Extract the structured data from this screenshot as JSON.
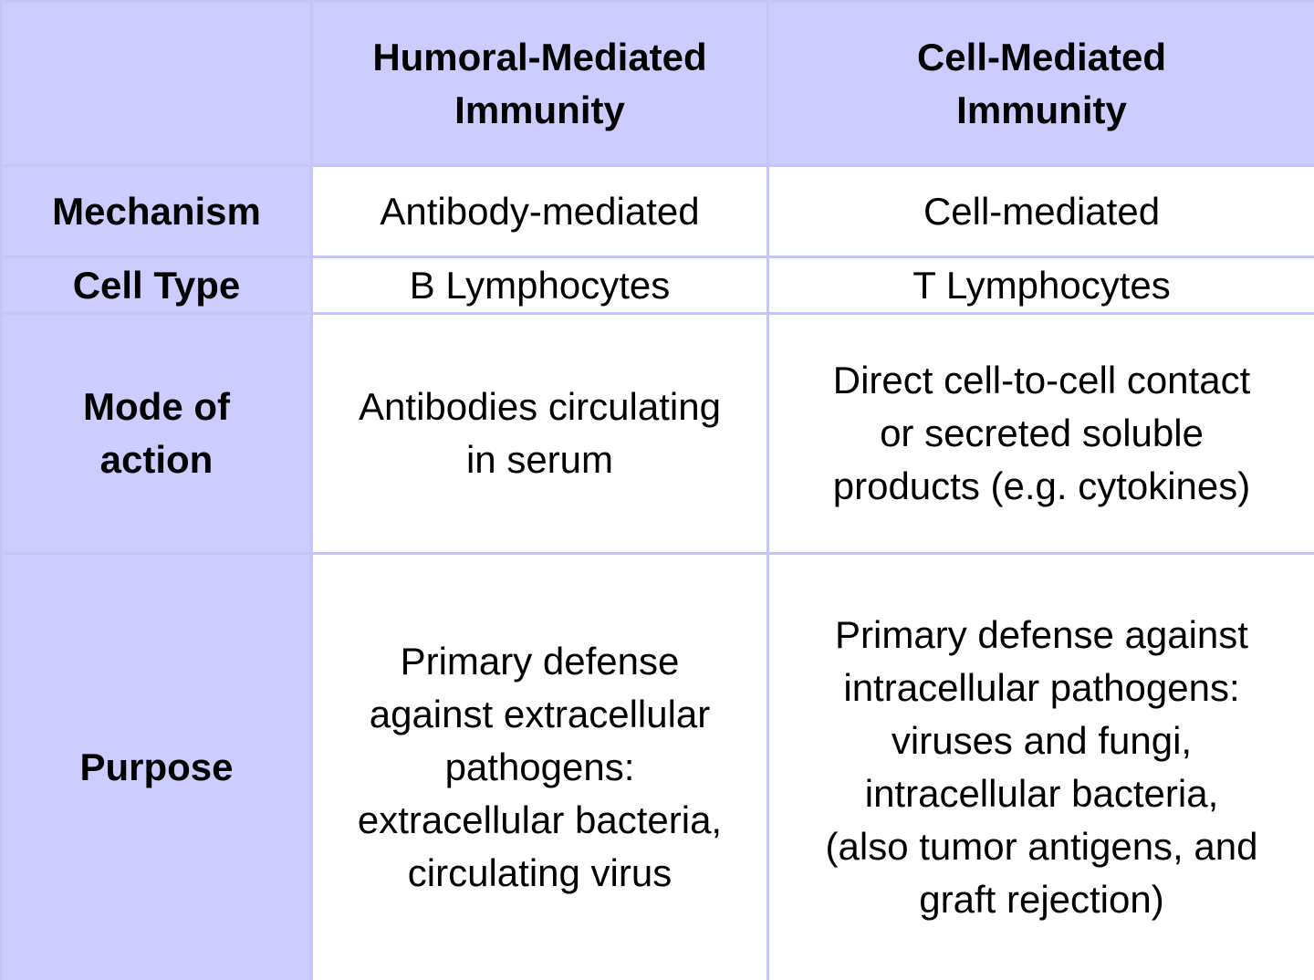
{
  "table": {
    "header": {
      "columns": [
        [
          "Humoral-Mediated",
          "Immunity"
        ],
        [
          "Cell-Mediated",
          "Immunity"
        ]
      ]
    },
    "rows": [
      {
        "label": [
          "Mechanism"
        ],
        "cells": [
          [
            "Antibody-mediated"
          ],
          [
            "Cell-mediated"
          ]
        ]
      },
      {
        "label": [
          "Cell Type"
        ],
        "cells": [
          [
            "B Lymphocytes"
          ],
          [
            "T Lymphocytes"
          ]
        ]
      },
      {
        "label": [
          "Mode of",
          "action"
        ],
        "cells": [
          [
            "Antibodies circulating",
            "in serum"
          ],
          [
            "Direct cell-to-cell contact",
            "or secreted soluble",
            "products (e.g. cytokines)"
          ]
        ]
      },
      {
        "label": [
          "Purpose"
        ],
        "cells": [
          [
            "Primary defense",
            "against extracellular",
            "pathogens:",
            "extracellular bacteria,",
            "circulating virus"
          ],
          [
            "Primary defense against",
            "intracellular pathogens:",
            "viruses and fungi,",
            "intracellular bacteria,",
            "(also tumor antigens, and",
            "graft rejection)"
          ]
        ]
      }
    ]
  }
}
